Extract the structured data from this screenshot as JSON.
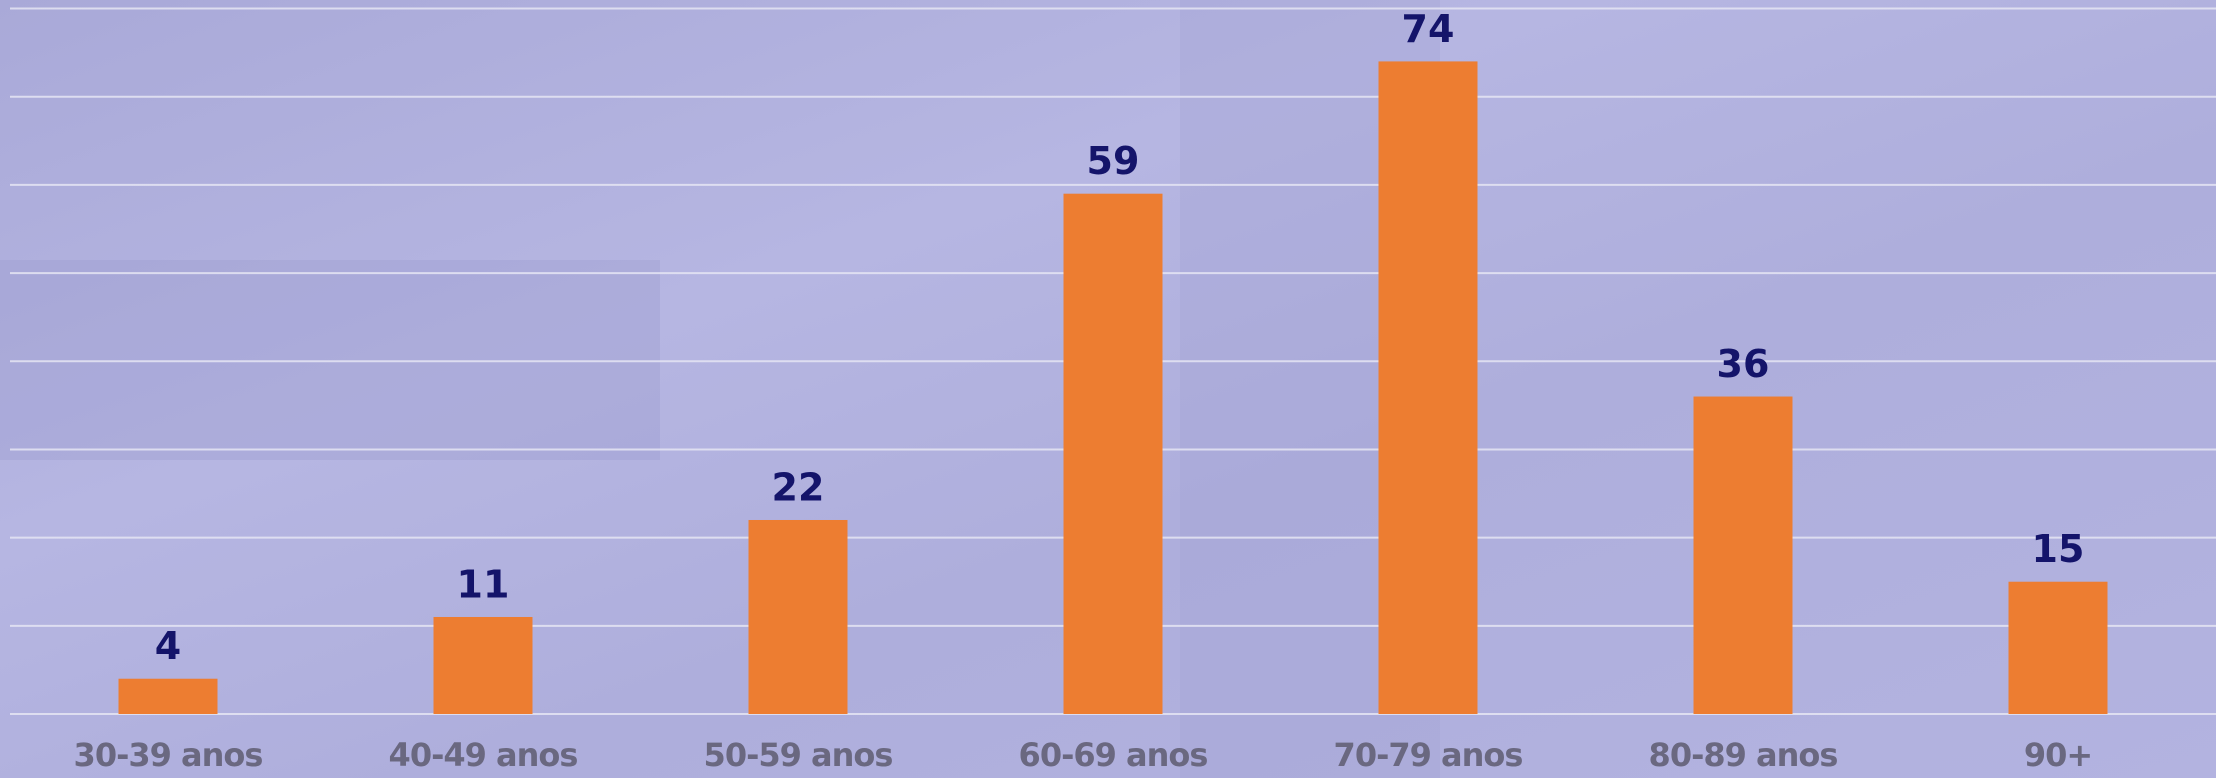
{
  "chart_data": {
    "type": "bar",
    "categories": [
      "30-39 anos",
      "40-49 anos",
      "50-59 anos",
      "60-69 anos",
      "70-79 anos",
      "80-89 anos",
      "90+"
    ],
    "values": [
      4,
      11,
      22,
      59,
      74,
      36,
      15
    ],
    "color": "#ed7d31",
    "ylim": [
      0,
      80
    ],
    "yticks": [
      0,
      10,
      20,
      30,
      40,
      50,
      60,
      70,
      80
    ],
    "grid": true
  }
}
